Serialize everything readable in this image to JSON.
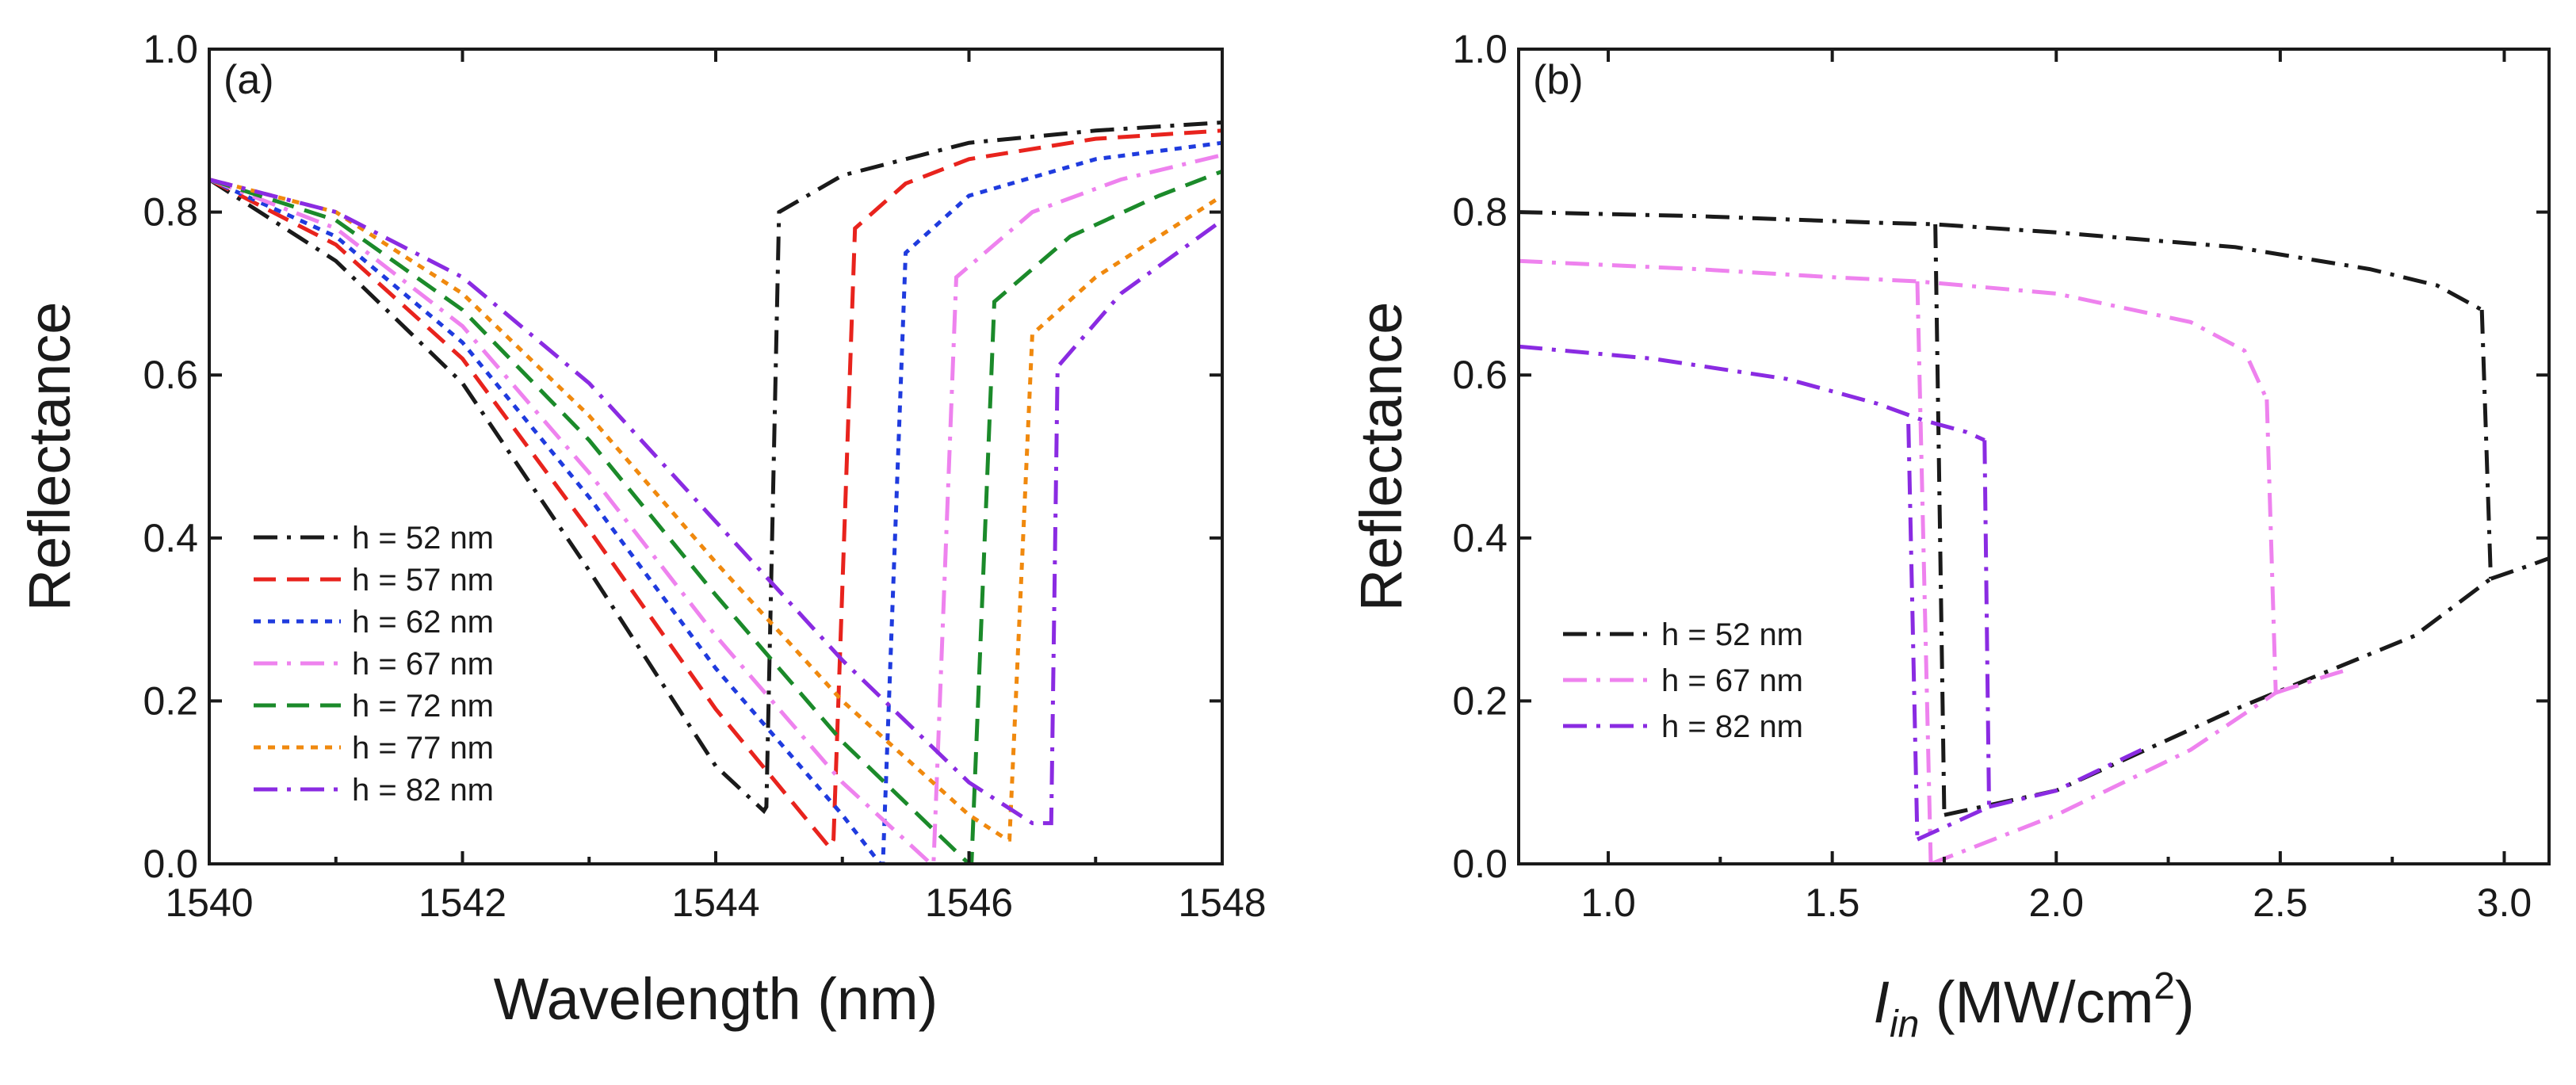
{
  "chart_data": [
    {
      "type": "line",
      "panel_label": "(a)",
      "xlabel": "Wavelength (nm)",
      "ylabel": "Reflectance",
      "xlim": [
        1540,
        1548
      ],
      "ylim": [
        0.0,
        1.0
      ],
      "xticks": [
        "1540",
        "1542",
        "1544",
        "1546",
        "1548"
      ],
      "yticks": [
        "0.0",
        "0.2",
        "0.4",
        "0.6",
        "0.8",
        "1.0"
      ],
      "legend_position": "lower-left",
      "series": [
        {
          "name": "h = 52 nm",
          "color": "#1a1a1a",
          "dash": "dashdot",
          "x": [
            1540,
            1541,
            1542,
            1543,
            1544,
            1544.38,
            1544.4,
            1544.5,
            1545,
            1546,
            1547,
            1548
          ],
          "y": [
            0.84,
            0.74,
            0.59,
            0.36,
            0.12,
            0.065,
            0.07,
            0.8,
            0.845,
            0.885,
            0.9,
            0.91
          ]
        },
        {
          "name": "h = 57 nm",
          "color": "#e8231d",
          "dash": "dashed",
          "x": [
            1540,
            1541,
            1542,
            1543,
            1544,
            1544.9,
            1544.93,
            1545.1,
            1545.5,
            1546,
            1547,
            1548
          ],
          "y": [
            0.84,
            0.76,
            0.62,
            0.41,
            0.19,
            0.02,
            0.03,
            0.78,
            0.835,
            0.865,
            0.89,
            0.9
          ]
        },
        {
          "name": "h = 62 nm",
          "color": "#1f3bde",
          "dash": "dotted",
          "x": [
            1540,
            1541,
            1542,
            1543,
            1544,
            1545,
            1545.3,
            1545.32,
            1545.5,
            1546,
            1547,
            1548
          ],
          "y": [
            0.84,
            0.77,
            0.64,
            0.45,
            0.24,
            0.06,
            0.0,
            0.0,
            0.75,
            0.82,
            0.865,
            0.885
          ]
        },
        {
          "name": "h = 67 nm",
          "color": "#ee82ee",
          "dash": "dashdot",
          "x": [
            1540,
            1541,
            1542,
            1543,
            1544,
            1545,
            1545.7,
            1545.72,
            1545.9,
            1546.5,
            1547.2,
            1548
          ],
          "y": [
            0.84,
            0.78,
            0.66,
            0.48,
            0.28,
            0.1,
            0.0,
            0.0,
            0.72,
            0.8,
            0.84,
            0.87
          ]
        },
        {
          "name": "h = 72 nm",
          "color": "#1b8a2a",
          "dash": "dashed",
          "x": [
            1540,
            1541,
            1542,
            1543,
            1544,
            1545,
            1546,
            1546.02,
            1546.2,
            1546.8,
            1547.5,
            1548
          ],
          "y": [
            0.84,
            0.79,
            0.68,
            0.52,
            0.33,
            0.15,
            0.0,
            0.0,
            0.69,
            0.77,
            0.82,
            0.85
          ]
        },
        {
          "name": "h = 77 nm",
          "color": "#f0890e",
          "dash": "dotted",
          "x": [
            1540,
            1541,
            1542,
            1543,
            1544,
            1545,
            1546,
            1546.3,
            1546.32,
            1546.5,
            1547,
            1548
          ],
          "y": [
            0.84,
            0.8,
            0.7,
            0.55,
            0.37,
            0.2,
            0.06,
            0.03,
            0.03,
            0.65,
            0.72,
            0.82
          ]
        },
        {
          "name": "h = 82 nm",
          "color": "#8a2be2",
          "dash": "dashdot",
          "x": [
            1540,
            1541,
            1542,
            1543,
            1544,
            1545,
            1546,
            1546.5,
            1546.65,
            1546.7,
            1547.2,
            1548
          ],
          "y": [
            0.84,
            0.8,
            0.72,
            0.59,
            0.42,
            0.25,
            0.1,
            0.05,
            0.05,
            0.61,
            0.7,
            0.79
          ]
        }
      ]
    },
    {
      "type": "line",
      "panel_label": "(b)",
      "xlabel_main": "I",
      "xlabel_sub": "in",
      "xlabel_unit": " (MW/cm",
      "xlabel_sup": "2",
      "xlabel_close": ")",
      "ylabel": "Reflectance",
      "xlim": [
        0.8,
        3.1
      ],
      "ylim": [
        0.0,
        1.0
      ],
      "xtick_values": [
        1.0,
        1.5,
        2.0,
        2.5,
        3.0
      ],
      "xticks": [
        "1.0",
        "1.5",
        "2.0",
        "2.5",
        "3.0"
      ],
      "yticks": [
        "0.0",
        "0.2",
        "0.4",
        "0.6",
        "0.8",
        "1.0"
      ],
      "legend_position": "lower-left",
      "series": [
        {
          "name": "h = 52 nm",
          "color": "#1a1a1a",
          "dash": "dashdot",
          "segments": [
            {
              "x": [
                0.8,
                1.2,
                1.6,
                1.73,
                2.0,
                2.4,
                2.7,
                2.85,
                2.95
              ],
              "y": [
                0.8,
                0.795,
                0.787,
                0.785,
                0.775,
                0.757,
                0.73,
                0.71,
                0.68
              ]
            },
            {
              "x": [
                2.95,
                2.97
              ],
              "y": [
                0.68,
                0.35
              ]
            },
            {
              "x": [
                2.97,
                3.05,
                3.1
              ],
              "y": [
                0.35,
                0.365,
                0.375
              ]
            },
            {
              "x": [
                1.73,
                1.75
              ],
              "y": [
                0.785,
                0.06
              ]
            },
            {
              "x": [
                1.75,
                2.0,
                2.4,
                2.8,
                2.97
              ],
              "y": [
                0.06,
                0.09,
                0.19,
                0.28,
                0.35
              ]
            }
          ]
        },
        {
          "name": "h = 67 nm",
          "color": "#ee82ee",
          "dash": "dashdot",
          "segments": [
            {
              "x": [
                0.8,
                1.2,
                1.5,
                1.69,
                2.0,
                2.3,
                2.42,
                2.47
              ],
              "y": [
                0.74,
                0.73,
                0.72,
                0.715,
                0.7,
                0.665,
                0.63,
                0.57
              ]
            },
            {
              "x": [
                2.47,
                2.49
              ],
              "y": [
                0.57,
                0.21
              ]
            },
            {
              "x": [
                2.49,
                2.6,
                2.66
              ],
              "y": [
                0.21,
                0.23,
                0.24
              ]
            },
            {
              "x": [
                1.69,
                1.72
              ],
              "y": [
                0.715,
                0.0
              ]
            },
            {
              "x": [
                1.72,
                2.0,
                2.3,
                2.49
              ],
              "y": [
                0.0,
                0.06,
                0.14,
                0.21
              ]
            }
          ]
        },
        {
          "name": "h = 82 nm",
          "color": "#8a2be2",
          "dash": "dashdot",
          "segments": [
            {
              "x": [
                0.8,
                1.1,
                1.4,
                1.6,
                1.7,
                1.8,
                1.84
              ],
              "y": [
                0.635,
                0.62,
                0.595,
                0.565,
                0.545,
                0.53,
                0.52
              ]
            },
            {
              "x": [
                1.84,
                1.85
              ],
              "y": [
                0.52,
                0.07
              ]
            },
            {
              "x": [
                1.85,
                2.0,
                2.19
              ],
              "y": [
                0.07,
                0.09,
                0.14
              ]
            },
            {
              "x": [
                1.67,
                1.69
              ],
              "y": [
                0.54,
                0.03
              ]
            },
            {
              "x": [
                1.69,
                1.85
              ],
              "y": [
                0.03,
                0.07
              ]
            }
          ]
        }
      ]
    }
  ]
}
